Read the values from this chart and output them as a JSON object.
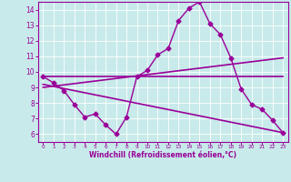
{
  "background_color": "#c8eaea",
  "grid_color": "#ffffff",
  "line_color": "#990099",
  "xlabel": "Windchill (Refroidissement éolien,°C)",
  "xlim": [
    -0.5,
    23.5
  ],
  "ylim": [
    5.5,
    14.5
  ],
  "yticks": [
    6,
    7,
    8,
    9,
    10,
    11,
    12,
    13,
    14
  ],
  "xticks": [
    0,
    1,
    2,
    3,
    4,
    5,
    6,
    7,
    8,
    9,
    10,
    11,
    12,
    13,
    14,
    15,
    16,
    17,
    18,
    19,
    20,
    21,
    22,
    23
  ],
  "series": [
    {
      "x": [
        0,
        1,
        2,
        3,
        4,
        5,
        6,
        7,
        8,
        9,
        10,
        11,
        12,
        13,
        14,
        15,
        16,
        17,
        18,
        19,
        20,
        21,
        22,
        23
      ],
      "y": [
        9.7,
        9.3,
        8.8,
        7.9,
        7.1,
        7.3,
        6.6,
        6.0,
        7.1,
        9.7,
        10.1,
        11.1,
        11.5,
        13.3,
        14.1,
        14.5,
        13.1,
        12.4,
        10.9,
        8.9,
        7.9,
        7.6,
        6.9,
        6.1
      ],
      "marker": "D",
      "markersize": 2.5,
      "linewidth": 1.0
    },
    {
      "x": [
        0,
        23
      ],
      "y": [
        9.7,
        9.7
      ],
      "marker": null,
      "markersize": 0,
      "linewidth": 1.2
    },
    {
      "x": [
        0,
        23
      ],
      "y": [
        9.0,
        10.9
      ],
      "marker": null,
      "markersize": 0,
      "linewidth": 1.2
    },
    {
      "x": [
        0,
        23
      ],
      "y": [
        9.2,
        6.1
      ],
      "marker": null,
      "markersize": 0,
      "linewidth": 1.2
    }
  ]
}
